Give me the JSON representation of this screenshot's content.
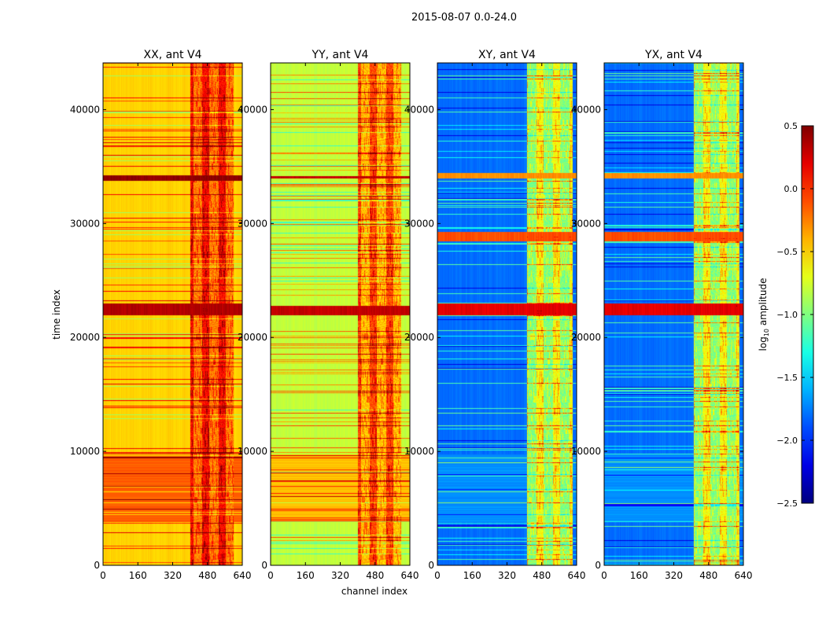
{
  "chart_data": {
    "type": "heatmap",
    "suptitle": "2015-08-07 0.0-24.0",
    "xlabel": "channel index",
    "ylabel": "time index",
    "xlim": [
      0,
      640
    ],
    "ylim": [
      0,
      44100
    ],
    "xticks": [
      0,
      160,
      320,
      480,
      640
    ],
    "yticks": [
      0,
      10000,
      20000,
      30000,
      40000
    ],
    "colorbar": {
      "label": "log10 amplitude",
      "label_main": "log",
      "label_sub": "10",
      "label_tail": " amplitude",
      "range": [
        -2.5,
        0.5
      ],
      "ticks": [
        -2.5,
        -2.0,
        -1.5,
        -1.0,
        -0.5,
        0.0,
        0.5
      ],
      "tick_labels": [
        "−2.5",
        "−2.0",
        "−1.5",
        "−1.0",
        "−0.5",
        "0.0",
        "0.5"
      ],
      "colormap": "jet"
    },
    "panels": [
      {
        "title": "XX, ant V4",
        "base_level": -0.5,
        "band_channels": [
          400,
          600
        ],
        "band_level": -0.15,
        "block_time": [
          3800,
          9800
        ],
        "block_level": -0.15,
        "hot_rows": [
          [
            22000,
            23000,
            0.35
          ],
          [
            33800,
            34300,
            0.45
          ]
        ]
      },
      {
        "title": "YY, ant V4",
        "base_level": -0.8,
        "band_channels": [
          400,
          600
        ],
        "band_level": -0.35,
        "block_time": [
          3800,
          9800
        ],
        "block_level": -0.45,
        "hot_rows": [
          [
            22000,
            22800,
            0.3
          ],
          [
            34000,
            34200,
            0.3
          ]
        ]
      },
      {
        "title": "XY, ant V4",
        "base_level": -1.8,
        "band_channels": [
          410,
          620
        ],
        "band_level": -0.9,
        "block_time": [
          3800,
          9800
        ],
        "block_level": -1.7,
        "hot_rows": [
          [
            22000,
            23000,
            0.2
          ],
          [
            28500,
            29300,
            -0.1
          ],
          [
            34000,
            34500,
            -0.3
          ]
        ]
      },
      {
        "title": "YX, ant V4",
        "base_level": -1.8,
        "band_channels": [
          410,
          620
        ],
        "band_level": -0.9,
        "block_time": [
          3800,
          9800
        ],
        "block_level": -1.7,
        "hot_rows": [
          [
            22000,
            23000,
            0.2
          ],
          [
            28500,
            29300,
            -0.1
          ],
          [
            34000,
            34500,
            -0.3
          ]
        ]
      }
    ]
  }
}
